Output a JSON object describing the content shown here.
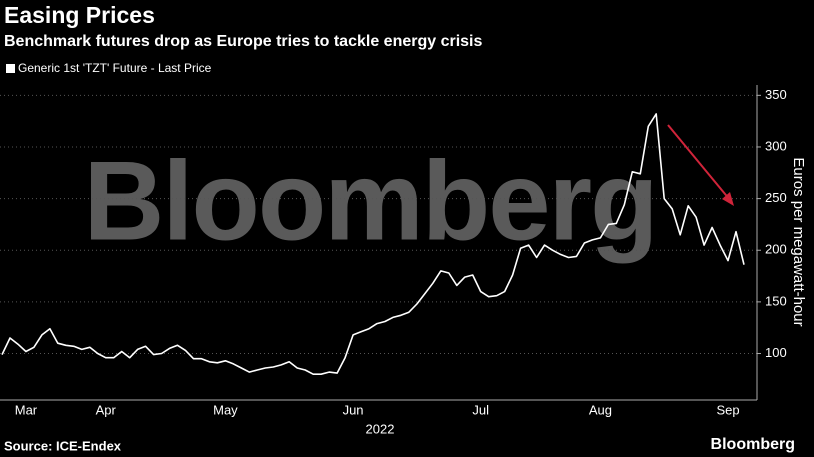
{
  "chart_data": {
    "type": "line",
    "title": "Easing Prices",
    "subtitle": "Benchmark futures drop as Europe tries to tackle energy crisis",
    "ylabel": "Euros per megawatt-hour",
    "xlabel": "2022",
    "watermark": "Bloomberg",
    "source": "Source: ICE-Endex",
    "brand": "Bloomberg",
    "categories": [
      null,
      null,
      null,
      "Mar",
      null,
      null,
      null,
      null,
      null,
      null,
      null,
      null,
      null,
      "Apr",
      null,
      null,
      null,
      null,
      null,
      null,
      null,
      null,
      null,
      null,
      null,
      null,
      null,
      null,
      "May",
      null,
      null,
      null,
      null,
      null,
      null,
      null,
      null,
      null,
      null,
      null,
      null,
      null,
      null,
      null,
      "Jun",
      null,
      null,
      null,
      null,
      null,
      null,
      null,
      null,
      null,
      null,
      null,
      null,
      null,
      null,
      null,
      "Jul",
      null,
      null,
      null,
      null,
      null,
      null,
      null,
      null,
      null,
      null,
      null,
      null,
      null,
      null,
      "Aug",
      null,
      null,
      null,
      null,
      null,
      null,
      null,
      null,
      null,
      null,
      null,
      null,
      null,
      null,
      null,
      "Sep",
      null,
      null
    ],
    "series": [
      {
        "name": "Generic 1st 'TZT' Future - Last Price",
        "color": "#ffffff",
        "values": [
          99,
          115,
          109,
          102,
          106,
          118,
          124,
          110,
          108,
          107,
          104,
          106,
          100,
          96,
          96,
          102,
          96,
          104,
          107,
          99,
          100,
          105,
          108,
          103,
          95,
          95,
          92,
          91,
          93,
          90,
          86,
          82,
          84,
          86,
          87,
          89,
          92,
          86,
          84,
          80,
          80,
          82,
          81,
          96,
          118,
          121,
          124,
          129,
          131,
          135,
          137,
          140,
          148,
          158,
          168,
          180,
          178,
          166,
          174,
          176,
          160,
          155,
          156,
          160,
          176,
          202,
          205,
          193,
          205,
          200,
          196,
          193,
          194,
          207,
          210,
          212,
          225,
          226,
          244,
          276,
          274,
          320,
          332,
          250,
          240,
          215,
          243,
          232,
          205,
          222,
          205,
          190,
          218,
          186
        ]
      }
    ],
    "ylim": [
      55,
      360
    ],
    "yticks": [
      100,
      150,
      200,
      250,
      300,
      350
    ],
    "grid": true
  }
}
